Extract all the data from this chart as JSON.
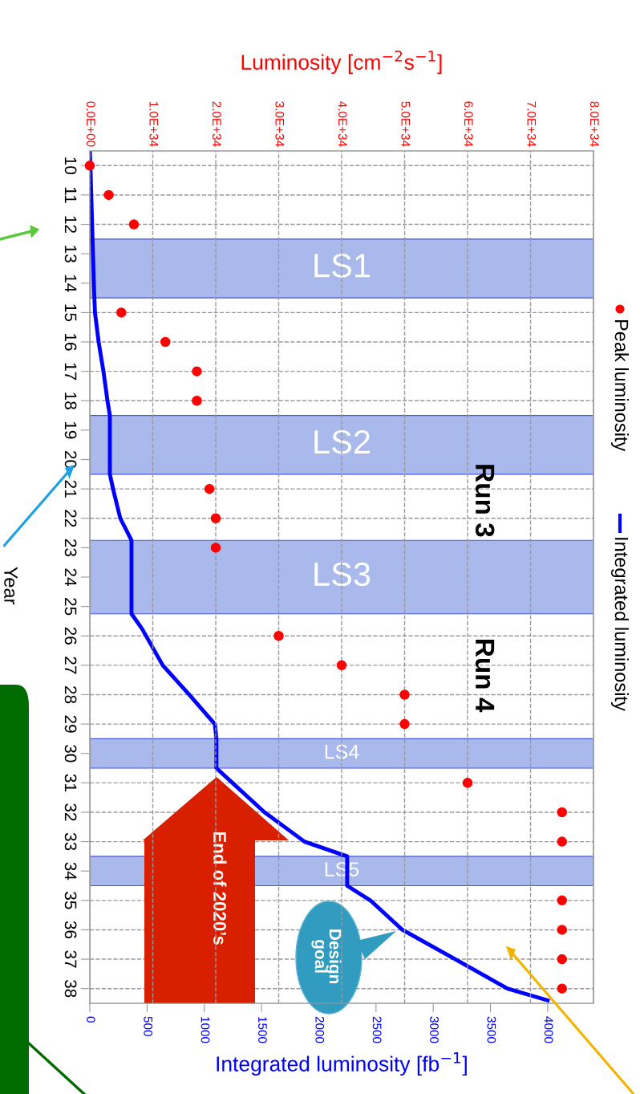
{
  "chart_data": {
    "type": "scatter",
    "orientation": "horizontal",
    "xlabel": "Integrated luminosity [fb$^{−1}$]",
    "x2label": "Luminosity [cm$^{−2}$s$^{−1}$]",
    "ylabel": "Year",
    "ylim": [
      38.5,
      9.5
    ],
    "yticks": [
      10,
      11,
      12,
      13,
      14,
      15,
      16,
      17,
      18,
      19,
      20,
      21,
      22,
      23,
      24,
      25,
      26,
      27,
      28,
      29,
      30,
      31,
      32,
      33,
      34,
      35,
      36,
      37,
      38
    ],
    "xlim": [
      0,
      4400
    ],
    "xticks": [
      0,
      500,
      1000,
      1500,
      2000,
      2500,
      3000,
      3500,
      4000
    ],
    "x2lim": [
      0,
      8e+34
    ],
    "x2ticks": [
      {
        "value": 0,
        "label": "0.0E+00"
      },
      {
        "value": 1e+34,
        "label": "1.0E+34"
      },
      {
        "value": 2e+34,
        "label": "2.0E+34"
      },
      {
        "value": 3e+34,
        "label": "3.0E+34"
      },
      {
        "value": 4e+34,
        "label": "4.0E+34"
      },
      {
        "value": 5e+34,
        "label": "5.0E+34"
      },
      {
        "value": 6e+34,
        "label": "6.0E+34"
      },
      {
        "value": 7e+34,
        "label": "7.0E+34"
      },
      {
        "value": 8e+34,
        "label": "8.0E+34"
      }
    ],
    "grid": true,
    "legend": "right",
    "series": [
      {
        "name": "Peak luminosity",
        "axis": "x2",
        "marker": "circle",
        "color": "#ff0000",
        "x": [
          10,
          11,
          12,
          15,
          16,
          17,
          18,
          21,
          22,
          23,
          26,
          27,
          28,
          29,
          31,
          32,
          33,
          35,
          36,
          37,
          38
        ],
        "values": [
          0,
          3e+33,
          7e+33,
          5e+33,
          1.2e+34,
          1.7e+34,
          1.7e+34,
          1.9e+34,
          2e+34,
          2e+34,
          3e+34,
          4e+34,
          5e+34,
          5e+34,
          6e+34,
          7.5e+34,
          7.5e+34,
          7.5e+34,
          7.5e+34,
          7.5e+34,
          7.5e+34
        ]
      },
      {
        "name": "Integrated luminosity",
        "type": "line",
        "line_style": "solid",
        "color": "#0000ff",
        "x": [
          9.5,
          10,
          12,
          14,
          15,
          16,
          17,
          18,
          18.5,
          20.5,
          21,
          22,
          22.75,
          25.25,
          25.75,
          27,
          28,
          29,
          29.5,
          30.5,
          31,
          32,
          33,
          33.5,
          34.5,
          35,
          36,
          37,
          38,
          38.4
        ],
        "values": [
          0,
          5,
          20,
          35,
          45,
          77,
          119,
          154,
          175,
          175,
          203,
          266,
          364,
          364,
          455,
          637,
          868,
          1092,
          1106,
          1106,
          1246,
          1526,
          1876,
          2248,
          2248,
          2451,
          2731,
          3193,
          3648,
          4000
        ]
      }
    ],
    "bands": [
      {
        "axis": "y",
        "from": 12.5,
        "to": 14.5,
        "label": "LS1",
        "color": "#a9b9ec"
      },
      {
        "axis": "y",
        "from": 18.5,
        "to": 20.5,
        "label": "LS2",
        "color": "#a9b9ec"
      },
      {
        "axis": "y",
        "from": 22.75,
        "to": 25.25,
        "label": "LS3",
        "color": "#a9b9ec"
      },
      {
        "axis": "y",
        "from": 29.5,
        "to": 30.5,
        "label": "LS4",
        "color": "#a9b9ec"
      },
      {
        "axis": "y",
        "from": 33.5,
        "to": 34.5,
        "label": "LS5",
        "color": "#a9b9ec"
      }
    ],
    "annotations": [
      "Run 3",
      "Run 4",
      "End of 2020’s",
      "Design\ngoal"
    ]
  }
}
